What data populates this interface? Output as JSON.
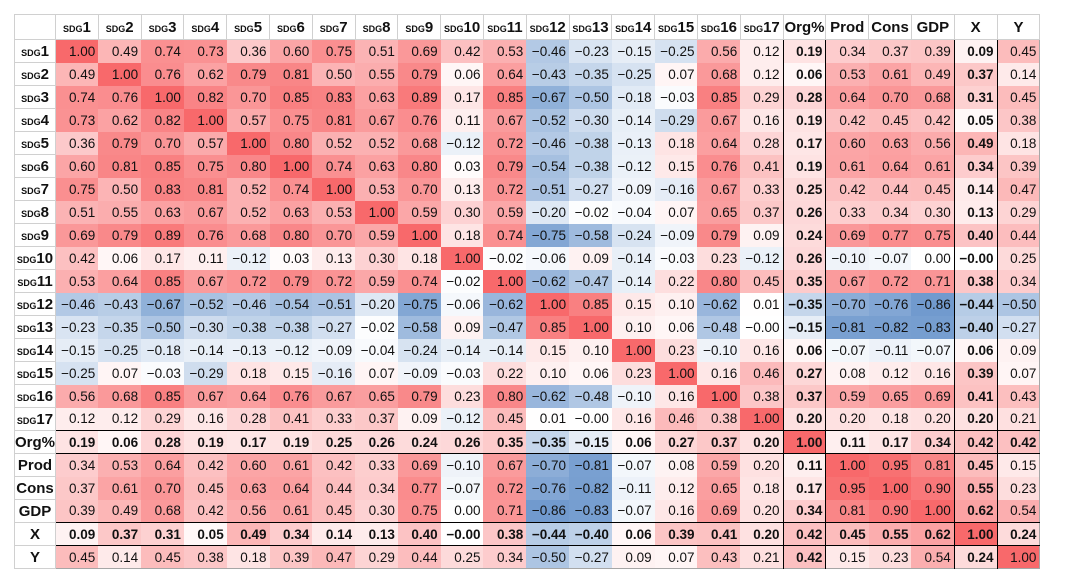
{
  "chart_data": {
    "type": "heatmap",
    "title": "",
    "labels": [
      {
        "prefix": "SDG",
        "num": "1"
      },
      {
        "prefix": "SDG",
        "num": "2"
      },
      {
        "prefix": "SDG",
        "num": "3"
      },
      {
        "prefix": "SDG",
        "num": "4"
      },
      {
        "prefix": "SDG",
        "num": "5"
      },
      {
        "prefix": "SDG",
        "num": "6"
      },
      {
        "prefix": "SDG",
        "num": "7"
      },
      {
        "prefix": "SDG",
        "num": "8"
      },
      {
        "prefix": "SDG",
        "num": "9"
      },
      {
        "prefix": "SDG",
        "num": "10"
      },
      {
        "prefix": "SDG",
        "num": "11"
      },
      {
        "prefix": "SDG",
        "num": "12"
      },
      {
        "prefix": "SDG",
        "num": "13"
      },
      {
        "prefix": "SDG",
        "num": "14"
      },
      {
        "prefix": "SDG",
        "num": "15"
      },
      {
        "prefix": "SDG",
        "num": "16"
      },
      {
        "prefix": "SDG",
        "num": "17"
      },
      {
        "prefix": "",
        "num": "Org%"
      },
      {
        "prefix": "",
        "num": "Prod"
      },
      {
        "prefix": "",
        "num": "Cons"
      },
      {
        "prefix": "",
        "num": "GDP"
      },
      {
        "prefix": "",
        "num": "X"
      },
      {
        "prefix": "",
        "num": "Y"
      }
    ],
    "bold_labels": [
      "Org%",
      "X"
    ],
    "color_scale": {
      "min": -1,
      "mid": 0,
      "max": 1,
      "min_color": "#5A8AC6",
      "mid_color": "#FFFFFF",
      "max_color": "#F8696B"
    },
    "values": [
      [
        "1.00",
        "0.49",
        "0.74",
        "0.73",
        "0.36",
        "0.60",
        "0.75",
        "0.51",
        "0.69",
        "0.42",
        "0.53",
        "-0.46",
        "-0.23",
        "-0.15",
        "-0.25",
        "0.56",
        "0.12",
        "0.19",
        "0.34",
        "0.37",
        "0.39",
        "0.09",
        "0.45"
      ],
      [
        "0.49",
        "1.00",
        "0.76",
        "0.62",
        "0.79",
        "0.81",
        "0.50",
        "0.55",
        "0.79",
        "0.06",
        "0.64",
        "-0.43",
        "-0.35",
        "-0.25",
        "0.07",
        "0.68",
        "0.12",
        "0.06",
        "0.53",
        "0.61",
        "0.49",
        "0.37",
        "0.14"
      ],
      [
        "0.74",
        "0.76",
        "1.00",
        "0.82",
        "0.70",
        "0.85",
        "0.83",
        "0.63",
        "0.89",
        "0.17",
        "0.85",
        "-0.67",
        "-0.50",
        "-0.18",
        "-0.03",
        "0.85",
        "0.29",
        "0.28",
        "0.64",
        "0.70",
        "0.68",
        "0.31",
        "0.45"
      ],
      [
        "0.73",
        "0.62",
        "0.82",
        "1.00",
        "0.57",
        "0.75",
        "0.81",
        "0.67",
        "0.76",
        "0.11",
        "0.67",
        "-0.52",
        "-0.30",
        "-0.14",
        "-0.29",
        "0.67",
        "0.16",
        "0.19",
        "0.42",
        "0.45",
        "0.42",
        "0.05",
        "0.38"
      ],
      [
        "0.36",
        "0.79",
        "0.70",
        "0.57",
        "1.00",
        "0.80",
        "0.52",
        "0.52",
        "0.68",
        "-0.12",
        "0.72",
        "-0.46",
        "-0.38",
        "-0.13",
        "0.18",
        "0.64",
        "0.28",
        "0.17",
        "0.60",
        "0.63",
        "0.56",
        "0.49",
        "0.18"
      ],
      [
        "0.60",
        "0.81",
        "0.85",
        "0.75",
        "0.80",
        "1.00",
        "0.74",
        "0.63",
        "0.80",
        "0.03",
        "0.79",
        "-0.54",
        "-0.38",
        "-0.12",
        "0.15",
        "0.76",
        "0.41",
        "0.19",
        "0.61",
        "0.64",
        "0.61",
        "0.34",
        "0.39"
      ],
      [
        "0.75",
        "0.50",
        "0.83",
        "0.81",
        "0.52",
        "0.74",
        "1.00",
        "0.53",
        "0.70",
        "0.13",
        "0.72",
        "-0.51",
        "-0.27",
        "-0.09",
        "-0.16",
        "0.67",
        "0.33",
        "0.25",
        "0.42",
        "0.44",
        "0.45",
        "0.14",
        "0.47"
      ],
      [
        "0.51",
        "0.55",
        "0.63",
        "0.67",
        "0.52",
        "0.63",
        "0.53",
        "1.00",
        "0.59",
        "0.30",
        "0.59",
        "-0.20",
        "-0.02",
        "-0.04",
        "0.07",
        "0.65",
        "0.37",
        "0.26",
        "0.33",
        "0.34",
        "0.30",
        "0.13",
        "0.29"
      ],
      [
        "0.69",
        "0.79",
        "0.89",
        "0.76",
        "0.68",
        "0.80",
        "0.70",
        "0.59",
        "1.00",
        "0.18",
        "0.74",
        "-0.75",
        "-0.58",
        "-0.24",
        "-0.09",
        "0.79",
        "0.09",
        "0.24",
        "0.69",
        "0.77",
        "0.75",
        "0.40",
        "0.44"
      ],
      [
        "0.42",
        "0.06",
        "0.17",
        "0.11",
        "-0.12",
        "0.03",
        "0.13",
        "0.30",
        "0.18",
        "1.00",
        "-0.02",
        "-0.06",
        "0.09",
        "-0.14",
        "-0.03",
        "0.23",
        "-0.12",
        "0.26",
        "-0.10",
        "-0.07",
        "0.00",
        "-0.00",
        "0.25"
      ],
      [
        "0.53",
        "0.64",
        "0.85",
        "0.67",
        "0.72",
        "0.79",
        "0.72",
        "0.59",
        "0.74",
        "-0.02",
        "1.00",
        "-0.62",
        "-0.47",
        "-0.14",
        "0.22",
        "0.80",
        "0.45",
        "0.35",
        "0.67",
        "0.72",
        "0.71",
        "0.38",
        "0.34"
      ],
      [
        "-0.46",
        "-0.43",
        "-0.67",
        "-0.52",
        "-0.46",
        "-0.54",
        "-0.51",
        "-0.20",
        "-0.75",
        "-0.06",
        "-0.62",
        "1.00",
        "0.85",
        "0.15",
        "0.10",
        "-0.62",
        "0.01",
        "-0.35",
        "-0.70",
        "-0.76",
        "-0.86",
        "-0.44",
        "-0.50"
      ],
      [
        "-0.23",
        "-0.35",
        "-0.50",
        "-0.30",
        "-0.38",
        "-0.38",
        "-0.27",
        "-0.02",
        "-0.58",
        "0.09",
        "-0.47",
        "0.85",
        "1.00",
        "0.10",
        "0.06",
        "-0.48",
        "-0.00",
        "-0.15",
        "-0.81",
        "-0.82",
        "-0.83",
        "-0.40",
        "-0.27"
      ],
      [
        "-0.15",
        "-0.25",
        "-0.18",
        "-0.14",
        "-0.13",
        "-0.12",
        "-0.09",
        "-0.04",
        "-0.24",
        "-0.14",
        "-0.14",
        "0.15",
        "0.10",
        "1.00",
        "0.23",
        "-0.10",
        "0.16",
        "0.06",
        "-0.07",
        "-0.11",
        "-0.07",
        "0.06",
        "0.09"
      ],
      [
        "-0.25",
        "0.07",
        "-0.03",
        "-0.29",
        "0.18",
        "0.15",
        "-0.16",
        "0.07",
        "-0.09",
        "-0.03",
        "0.22",
        "0.10",
        "0.06",
        "0.23",
        "1.00",
        "0.16",
        "0.46",
        "0.27",
        "0.08",
        "0.12",
        "0.16",
        "0.39",
        "0.07"
      ],
      [
        "0.56",
        "0.68",
        "0.85",
        "0.67",
        "0.64",
        "0.76",
        "0.67",
        "0.65",
        "0.79",
        "0.23",
        "0.80",
        "-0.62",
        "-0.48",
        "-0.10",
        "0.16",
        "1.00",
        "0.38",
        "0.37",
        "0.59",
        "0.65",
        "0.69",
        "0.41",
        "0.43"
      ],
      [
        "0.12",
        "0.12",
        "0.29",
        "0.16",
        "0.28",
        "0.41",
        "0.33",
        "0.37",
        "0.09",
        "-0.12",
        "0.45",
        "0.01",
        "-0.00",
        "0.16",
        "0.46",
        "0.38",
        "1.00",
        "0.20",
        "0.20",
        "0.18",
        "0.20",
        "0.20",
        "0.21"
      ],
      [
        "0.19",
        "0.06",
        "0.28",
        "0.19",
        "0.17",
        "0.19",
        "0.25",
        "0.26",
        "0.24",
        "0.26",
        "0.35",
        "-0.35",
        "-0.15",
        "0.06",
        "0.27",
        "0.37",
        "0.20",
        "1.00",
        "0.11",
        "0.17",
        "0.34",
        "0.42",
        "0.42"
      ],
      [
        "0.34",
        "0.53",
        "0.64",
        "0.42",
        "0.60",
        "0.61",
        "0.42",
        "0.33",
        "0.69",
        "-0.10",
        "0.67",
        "-0.70",
        "-0.81",
        "-0.07",
        "0.08",
        "0.59",
        "0.20",
        "0.11",
        "1.00",
        "0.95",
        "0.81",
        "0.45",
        "0.15"
      ],
      [
        "0.37",
        "0.61",
        "0.70",
        "0.45",
        "0.63",
        "0.64",
        "0.44",
        "0.34",
        "0.77",
        "-0.07",
        "0.72",
        "-0.76",
        "-0.82",
        "-0.11",
        "0.12",
        "0.65",
        "0.18",
        "0.17",
        "0.95",
        "1.00",
        "0.90",
        "0.55",
        "0.23"
      ],
      [
        "0.39",
        "0.49",
        "0.68",
        "0.42",
        "0.56",
        "0.61",
        "0.45",
        "0.30",
        "0.75",
        "0.00",
        "0.71",
        "-0.86",
        "-0.83",
        "-0.07",
        "0.16",
        "0.69",
        "0.20",
        "0.34",
        "0.81",
        "0.90",
        "1.00",
        "0.62",
        "0.54"
      ],
      [
        "0.09",
        "0.37",
        "0.31",
        "0.05",
        "0.49",
        "0.34",
        "0.14",
        "0.13",
        "0.40",
        "-0.00",
        "0.38",
        "-0.44",
        "-0.40",
        "0.06",
        "0.39",
        "0.41",
        "0.20",
        "0.42",
        "0.45",
        "0.55",
        "0.62",
        "1.00",
        "0.24"
      ],
      [
        "0.45",
        "0.14",
        "0.45",
        "0.38",
        "0.18",
        "0.39",
        "0.47",
        "0.29",
        "0.44",
        "0.25",
        "0.34",
        "-0.50",
        "-0.27",
        "0.09",
        "0.07",
        "0.43",
        "0.21",
        "0.42",
        "0.15",
        "0.23",
        "0.54",
        "0.24",
        "1.00"
      ]
    ]
  }
}
